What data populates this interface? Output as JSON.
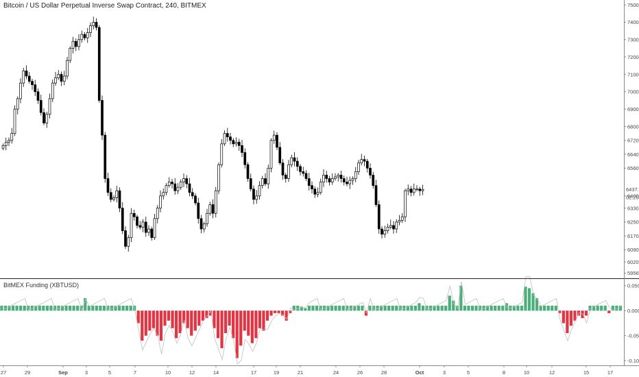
{
  "title": "Bitcoin / US Dollar Perpetual Inverse Swap Contract, 240, BITMEX",
  "subtitle": "BitMEX Funding (XBTUSD)",
  "price_tag": "6437.5",
  "time_tag": "02:20:01",
  "colors": {
    "candle_up": "#ffffff",
    "candle_down": "#000000",
    "candle_wick": "#000000",
    "hist_pos": "#4caf7a",
    "hist_neg": "#e23543",
    "funding_line": "#bdbdbd",
    "divider": "#222222"
  },
  "chart_data": [
    {
      "type": "candlestick",
      "title": "Bitcoin / US Dollar Perpetual Inverse Swap Contract, 240, BITMEX",
      "ylim": [
        5930,
        7520
      ],
      "y_ticks": [
        "5956.0",
        "6020.0",
        "6090.0",
        "6170.0",
        "6250.0",
        "6330.0",
        "6400.0",
        "6560.0",
        "6640.0",
        "6720.0",
        "6800.0",
        "6900.0",
        "7000.0",
        "7100.0",
        "7200.0",
        "7300.0",
        "7400.0",
        "7500.0"
      ],
      "x_labels": [
        "27",
        "29",
        "Sep",
        "3",
        "5",
        "7",
        "10",
        "12",
        "14",
        "17",
        "19",
        "21",
        "24",
        "26",
        "28",
        "Oct",
        "3",
        "5",
        "8",
        "10",
        "12",
        "15",
        "17"
      ],
      "series": [
        {
          "values": [
            6690,
            6710,
            6720,
            6760,
            6900,
            6960,
            7050,
            7120,
            7090,
            7060,
            7040,
            7000,
            6950,
            6880,
            6820,
            6870,
            6960,
            7050,
            7080,
            7100,
            7060,
            7090,
            7180,
            7250,
            7290,
            7260,
            7300,
            7330,
            7310,
            7340,
            7380,
            7400,
            7370,
            6950,
            6750,
            6500,
            6420,
            6380,
            6390,
            6430,
            6330,
            6200,
            6110,
            6160,
            6300,
            6280,
            6230,
            6220,
            6250,
            6190,
            6210,
            6160,
            6270,
            6330,
            6400,
            6420,
            6460,
            6480,
            6470,
            6430,
            6450,
            6480,
            6500,
            6470,
            6420,
            6400,
            6360,
            6270,
            6210,
            6240,
            6300,
            6350,
            6300,
            6430,
            6580,
            6700,
            6760,
            6740,
            6720,
            6700,
            6710,
            6690,
            6650,
            6580,
            6500,
            6440,
            6380,
            6400,
            6460,
            6500,
            6470,
            6560,
            6720,
            6750,
            6680,
            6590,
            6520,
            6500,
            6580,
            6620,
            6600,
            6570,
            6540,
            6530,
            6500,
            6460,
            6440,
            6410,
            6420,
            6480,
            6520,
            6500,
            6480,
            6500,
            6510,
            6520,
            6500,
            6480,
            6470,
            6490,
            6500,
            6540,
            6590,
            6610,
            6600,
            6560,
            6520,
            6460,
            6350,
            6210,
            6180,
            6200,
            6220,
            6230,
            6210,
            6250,
            6260,
            6280,
            6430,
            6440,
            6420,
            6440,
            6440,
            6430,
            6437.5
          ]
        }
      ]
    },
    {
      "type": "bar",
      "title": "BitMEX Funding (XBTUSD)",
      "ylim": [
        -0.108,
        0.062
      ],
      "y_ticks": [
        "0.0500",
        "0.0000",
        "-0.0500",
        "-0.1000"
      ],
      "series": [
        {
          "name": "funding",
          "values": [
            0.01,
            0.01,
            0.01,
            0.01,
            0.01,
            0.01,
            0.01,
            0.01,
            0.01,
            0.01,
            0.01,
            0.01,
            0.01,
            0.01,
            0.01,
            0.01,
            0.01,
            0.01,
            0.01,
            0.01,
            0.01,
            0.01,
            0.025,
            0.01,
            0.01,
            0.01,
            0.01,
            0.01,
            0.01,
            0.01,
            0.01,
            0.01,
            0.01,
            0.01,
            0.01,
            0.01,
            -0.025,
            -0.06,
            -0.05,
            -0.04,
            -0.035,
            -0.05,
            -0.06,
            -0.03,
            -0.02,
            -0.035,
            -0.055,
            -0.045,
            -0.025,
            -0.035,
            -0.05,
            -0.04,
            -0.03,
            -0.02,
            -0.015,
            -0.01,
            -0.035,
            -0.055,
            -0.075,
            -0.045,
            -0.03,
            -0.055,
            -0.095,
            -0.07,
            -0.04,
            -0.05,
            -0.065,
            -0.055,
            -0.035,
            -0.04,
            -0.02,
            -0.01,
            -0.005,
            -0.005,
            -0.01,
            -0.02,
            -0.005,
            0.01,
            0.01,
            0.008,
            0.005,
            0.01,
            0.01,
            0.01,
            0.01,
            0.01,
            0.01,
            0.01,
            0.01,
            0.01,
            0.01,
            0.01,
            0.01,
            0.01,
            0.01,
            0.01,
            -0.01,
            0.01,
            0.01,
            0.01,
            0.01,
            0.01,
            0.01,
            0.01,
            0.01,
            0.01,
            0.01,
            0.01,
            0.01,
            0.01,
            0.015,
            0.01,
            0.01,
            0.01,
            0.01,
            0.01,
            0.01,
            0.01,
            0.03,
            0.02,
            0.01,
            0.05,
            0.01,
            0.01,
            0.01,
            0.01,
            0.01,
            0.01,
            0.01,
            0.01,
            0.01,
            0.01,
            0.01,
            0.015,
            0.01,
            0.01,
            0.01,
            0.01,
            0.048,
            0.045,
            0.035,
            0.025,
            0.01,
            0.01,
            0.01,
            0.01,
            0.01,
            -0.005,
            -0.025,
            -0.045,
            -0.03,
            -0.02,
            -0.01,
            -0.015,
            -0.01,
            0.01,
            0.01,
            0.01,
            0.01,
            0.01,
            -0.005,
            0.01,
            0.01,
            0.01
          ]
        }
      ]
    }
  ]
}
